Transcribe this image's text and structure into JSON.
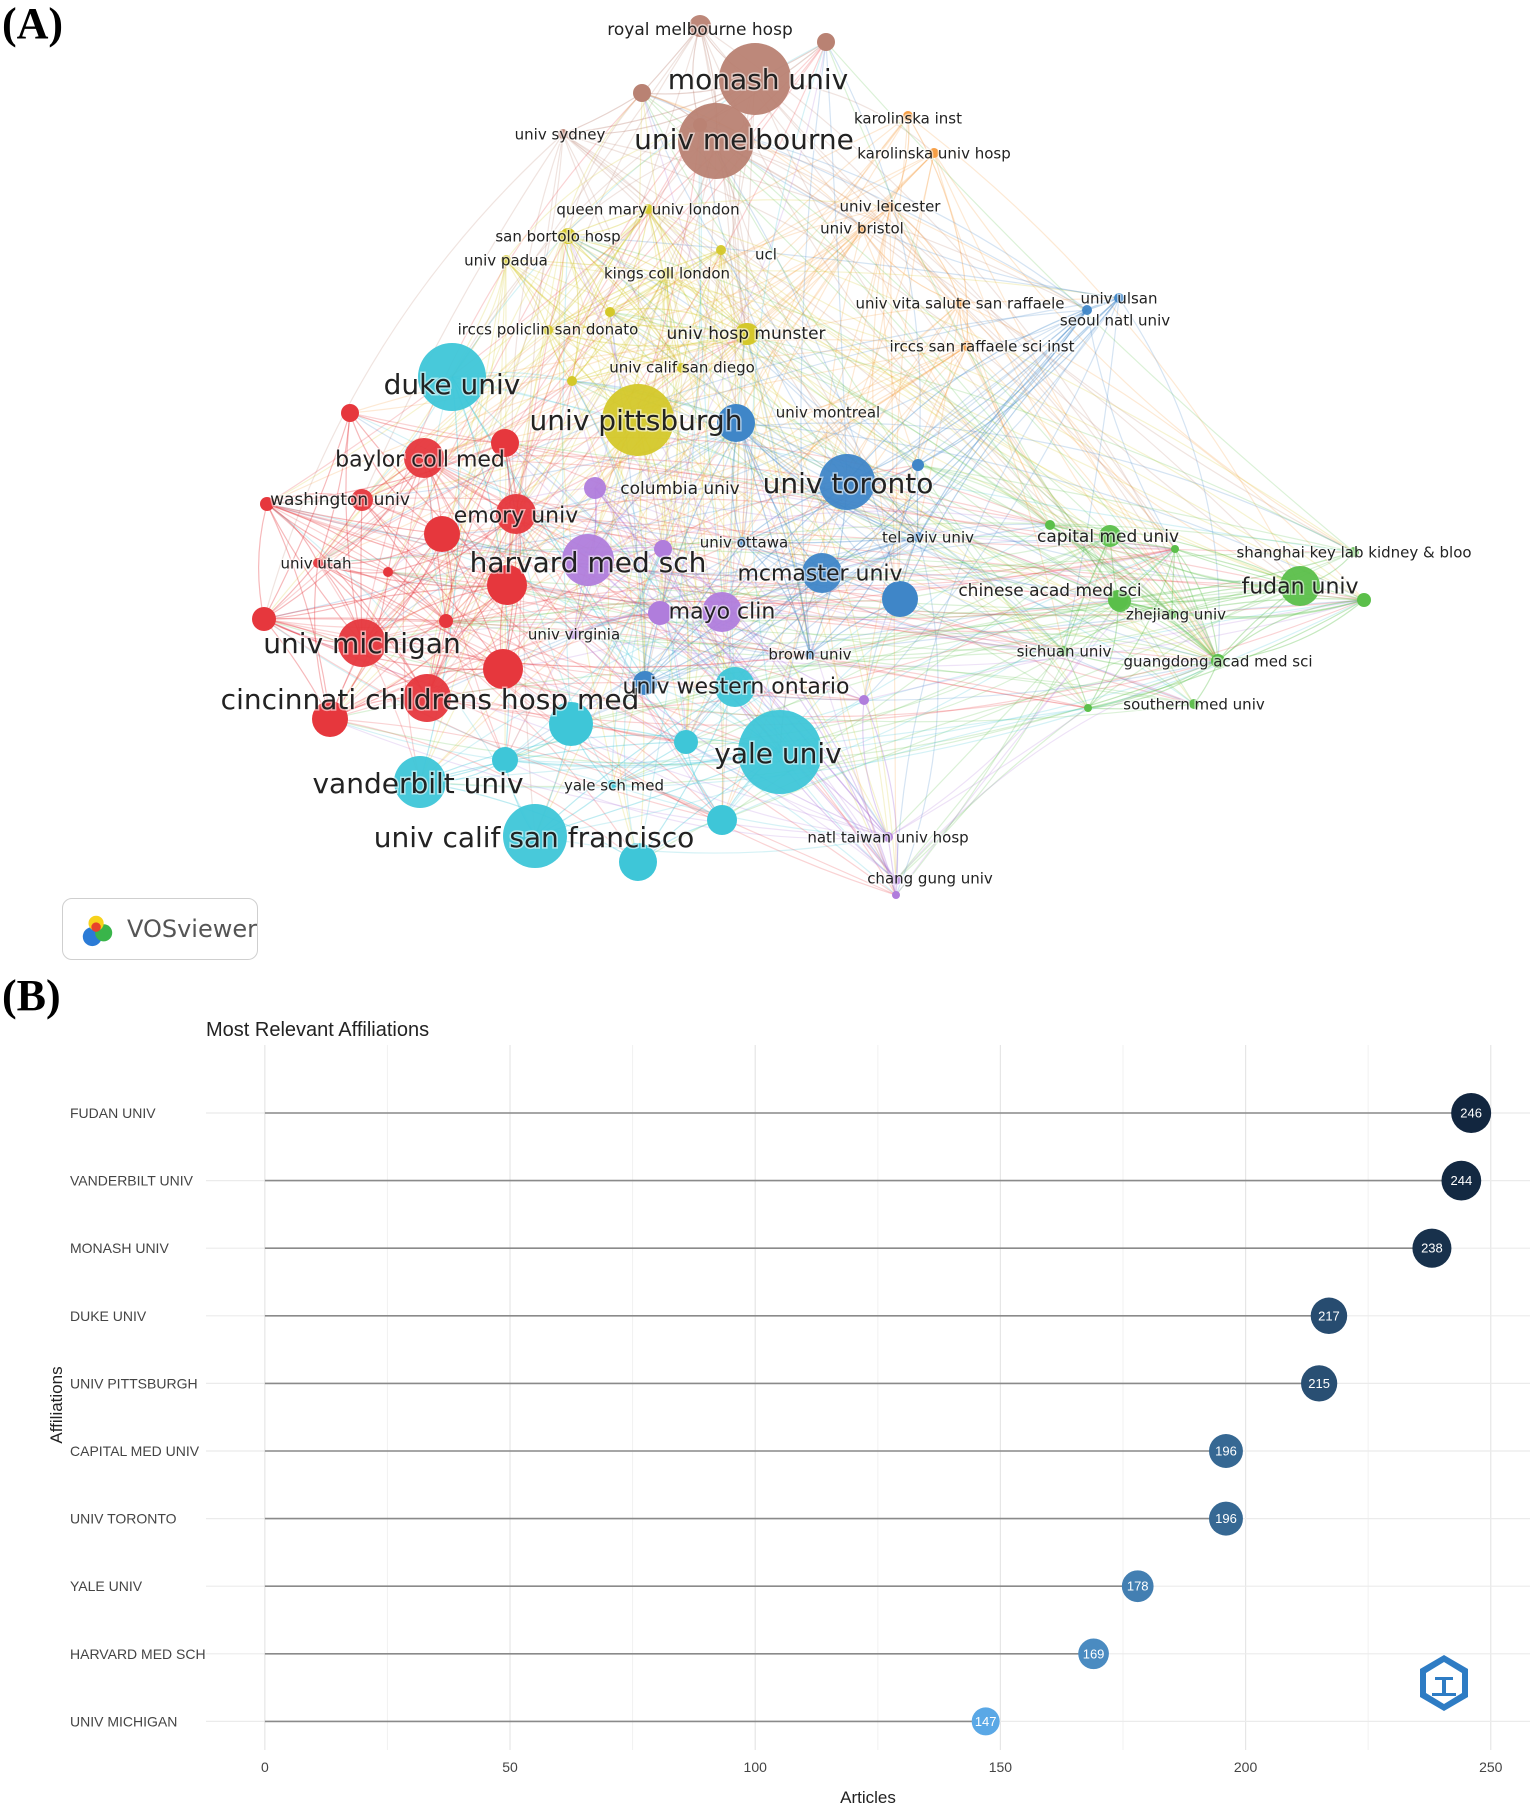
{
  "panel_labels": {
    "a": "(A)",
    "b": "(B)"
  },
  "vosviewer_badge": {
    "text": "VOSviewer"
  },
  "network": {
    "nodes": [
      {
        "label": "royal melbourne hosp",
        "cluster": "brown",
        "size": "small"
      },
      {
        "label": "monash univ",
        "cluster": "brown",
        "size": "large"
      },
      {
        "label": "univ melbourne",
        "cluster": "brown",
        "size": "large"
      },
      {
        "label": "univ sydney",
        "cluster": "brown",
        "size": "tiny"
      },
      {
        "label": "karolinska inst",
        "cluster": "orange",
        "size": "tiny"
      },
      {
        "label": "karolinska univ hosp",
        "cluster": "orange",
        "size": "tiny"
      },
      {
        "label": "queen mary univ london",
        "cluster": "yellow",
        "size": "tiny"
      },
      {
        "label": "san bortolo hosp",
        "cluster": "yellow",
        "size": "tiny"
      },
      {
        "label": "univ padua",
        "cluster": "yellow",
        "size": "tiny"
      },
      {
        "label": "kings coll london",
        "cluster": "yellow",
        "size": "tiny"
      },
      {
        "label": "ucl",
        "cluster": "yellow",
        "size": "tiny"
      },
      {
        "label": "univ leicester",
        "cluster": "orange",
        "size": "tiny"
      },
      {
        "label": "univ bristol",
        "cluster": "orange",
        "size": "tiny"
      },
      {
        "label": "univ vita salute san raffaele",
        "cluster": "orange",
        "size": "tiny"
      },
      {
        "label": "univ ulsan",
        "cluster": "blue",
        "size": "tiny"
      },
      {
        "label": "seoul natl univ",
        "cluster": "blue",
        "size": "tiny"
      },
      {
        "label": "irccs policlin san donato",
        "cluster": "yellow",
        "size": "tiny"
      },
      {
        "label": "univ hosp munster",
        "cluster": "yellow",
        "size": "small"
      },
      {
        "label": "irccs san raffaele sci inst",
        "cluster": "orange",
        "size": "tiny"
      },
      {
        "label": "univ calif san diego",
        "cluster": "yellow",
        "size": "tiny"
      },
      {
        "label": "duke univ",
        "cluster": "cyan",
        "size": "large"
      },
      {
        "label": "univ pittsburgh",
        "cluster": "yellow",
        "size": "large"
      },
      {
        "label": "univ montreal",
        "cluster": "blue",
        "size": "tiny"
      },
      {
        "label": "baylor coll med",
        "cluster": "red",
        "size": "medium"
      },
      {
        "label": "columbia univ",
        "cluster": "purple",
        "size": "small"
      },
      {
        "label": "univ toronto",
        "cluster": "blue",
        "size": "large"
      },
      {
        "label": "washington univ",
        "cluster": "red",
        "size": "small"
      },
      {
        "label": "emory univ",
        "cluster": "red",
        "size": "medium"
      },
      {
        "label": "capital med univ",
        "cluster": "green",
        "size": "small"
      },
      {
        "label": "shanghai key lab kidney & bloo",
        "cluster": "green",
        "size": "tiny"
      },
      {
        "label": "tel aviv univ",
        "cluster": "blue",
        "size": "tiny"
      },
      {
        "label": "univ ottawa",
        "cluster": "blue",
        "size": "tiny"
      },
      {
        "label": "univ utah",
        "cluster": "red",
        "size": "tiny"
      },
      {
        "label": "harvard med sch",
        "cluster": "purple",
        "size": "large"
      },
      {
        "label": "mcmaster univ",
        "cluster": "blue",
        "size": "medium"
      },
      {
        "label": "fudan univ",
        "cluster": "green",
        "size": "medium"
      },
      {
        "label": "chinese acad med sci",
        "cluster": "green",
        "size": "small"
      },
      {
        "label": "zhejiang univ",
        "cluster": "green",
        "size": "tiny"
      },
      {
        "label": "mayo clin",
        "cluster": "purple",
        "size": "medium"
      },
      {
        "label": "univ michigan",
        "cluster": "red",
        "size": "large"
      },
      {
        "label": "univ virginia",
        "cluster": "purple",
        "size": "tiny"
      },
      {
        "label": "sichuan univ",
        "cluster": "green",
        "size": "tiny"
      },
      {
        "label": "guangdong acad med sci",
        "cluster": "green",
        "size": "tiny"
      },
      {
        "label": "brown univ",
        "cluster": "blue",
        "size": "tiny"
      },
      {
        "label": "cincinnati childrens hosp med",
        "cluster": "red",
        "size": "large"
      },
      {
        "label": "univ western ontario",
        "cluster": "cyan",
        "size": "medium"
      },
      {
        "label": "southern med univ",
        "cluster": "green",
        "size": "tiny"
      },
      {
        "label": "yale univ",
        "cluster": "cyan",
        "size": "large"
      },
      {
        "label": "vanderbilt univ",
        "cluster": "cyan",
        "size": "large"
      },
      {
        "label": "yale sch med",
        "cluster": "cyan",
        "size": "tiny"
      },
      {
        "label": "univ calif san francisco",
        "cluster": "cyan",
        "size": "large"
      },
      {
        "label": "natl taiwan univ hosp",
        "cluster": "purple",
        "size": "tiny"
      },
      {
        "label": "chang gung univ",
        "cluster": "purple",
        "size": "tiny"
      }
    ],
    "cluster_colors": {
      "brown": "#b98273",
      "orange": "#f59a3c",
      "yellow": "#d4c82a",
      "cyan": "#3ec6d8",
      "blue": "#3f86c8",
      "red": "#e6373d",
      "purple": "#b07ddc",
      "green": "#5bbf4a"
    }
  },
  "chart_data": {
    "type": "lollipop",
    "title": "Most Relevant Affiliations",
    "xlabel": "Articles",
    "ylabel": "Affiliations",
    "categories": [
      "FUDAN UNIV",
      "VANDERBILT UNIV",
      "MONASH UNIV",
      "DUKE UNIV",
      "UNIV PITTSBURGH",
      "CAPITAL MED UNIV",
      "UNIV TORONTO",
      "YALE UNIV",
      "HARVARD MED SCH",
      "UNIV MICHIGAN"
    ],
    "values": [
      246,
      244,
      238,
      217,
      215,
      196,
      196,
      178,
      169,
      147
    ],
    "value_labels": [
      "246",
      "244",
      "238",
      "217",
      "215",
      "196",
      "196",
      "178",
      "169",
      "147"
    ],
    "xticks": [
      0,
      50,
      100,
      150,
      200,
      250
    ],
    "xlim": [
      -12,
      258
    ],
    "grid": true,
    "color_scale": {
      "low": "#5aa8e6",
      "high": "#12263f"
    }
  }
}
